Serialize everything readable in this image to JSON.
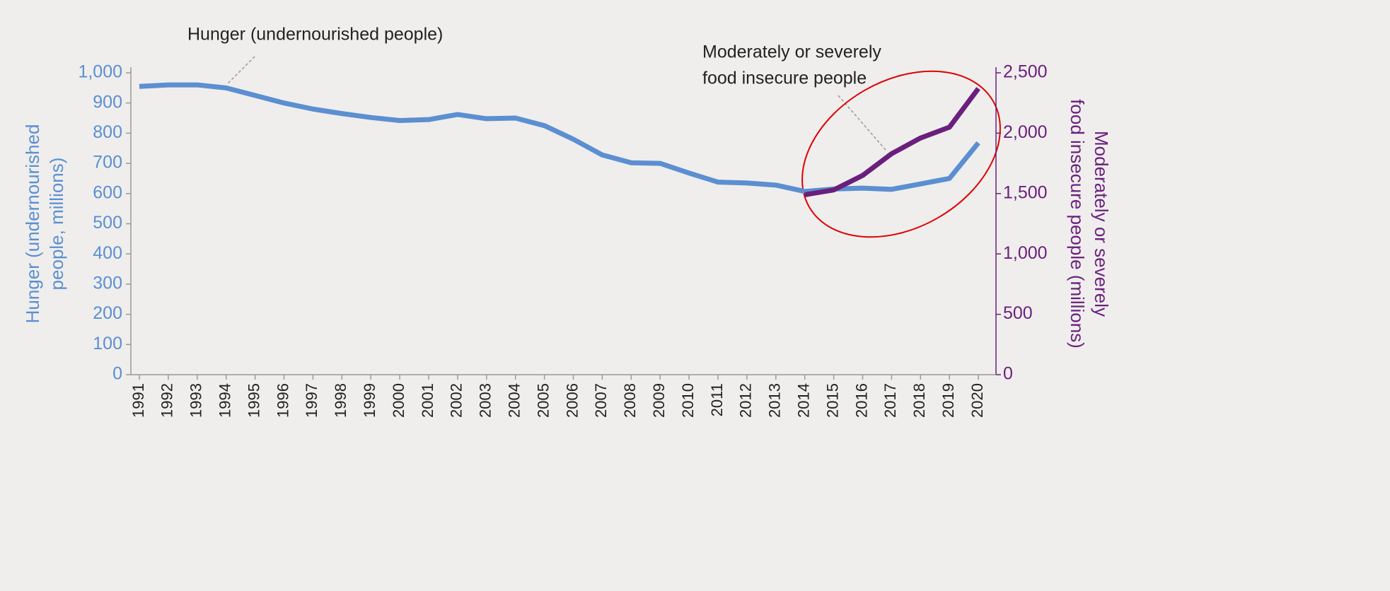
{
  "chart_data": {
    "type": "line",
    "categories": [
      "1991",
      "1992",
      "1993",
      "1994",
      "1995",
      "1996",
      "1997",
      "1998",
      "1999",
      "2000",
      "2001",
      "2002",
      "2003",
      "2004",
      "2005",
      "2006",
      "2007",
      "2008",
      "2009",
      "2010",
      "2011",
      "2012",
      "2013",
      "2014",
      "2015",
      "2016",
      "2017",
      "2018",
      "2019",
      "2020"
    ],
    "series": [
      {
        "name": "Hunger (undernourished people)",
        "color": "#5b8fd1",
        "values": [
          955,
          960,
          960,
          950,
          925,
          900,
          880,
          865,
          852,
          842,
          845,
          862,
          848,
          850,
          825,
          780,
          728,
          702,
          700,
          668,
          638,
          635,
          628,
          607,
          615,
          618,
          614,
          632,
          650,
          768
        ]
      },
      {
        "name": [
          "Moderately or severely",
          "food insecure people"
        ],
        "color": "#6b1f7c",
        "axis": "y2",
        "values": [
          null,
          null,
          null,
          null,
          null,
          null,
          null,
          null,
          null,
          null,
          null,
          null,
          null,
          null,
          null,
          null,
          null,
          null,
          null,
          null,
          null,
          null,
          null,
          1490,
          1530,
          1650,
          1830,
          1960,
          2050,
          2370
        ]
      }
    ],
    "ylabel": [
      "Hunger (undernourished",
      "people, millions)"
    ],
    "y2label": [
      "Moderately or severely",
      "food insecure people (millions)"
    ],
    "ylim": [
      0,
      1000
    ],
    "yticks": [
      0,
      100,
      200,
      300,
      400,
      500,
      600,
      700,
      800,
      900,
      {
        "value": 1000,
        "label": "1,000"
      }
    ],
    "y2lim": [
      0,
      2500
    ],
    "y2ticks": [
      0,
      500,
      {
        "value": 1000,
        "label": "1,000"
      },
      {
        "value": 1500,
        "label": "1,500"
      },
      {
        "value": 2000,
        "label": "2,000"
      },
      {
        "value": 2500,
        "label": "2,500"
      }
    ]
  }
}
